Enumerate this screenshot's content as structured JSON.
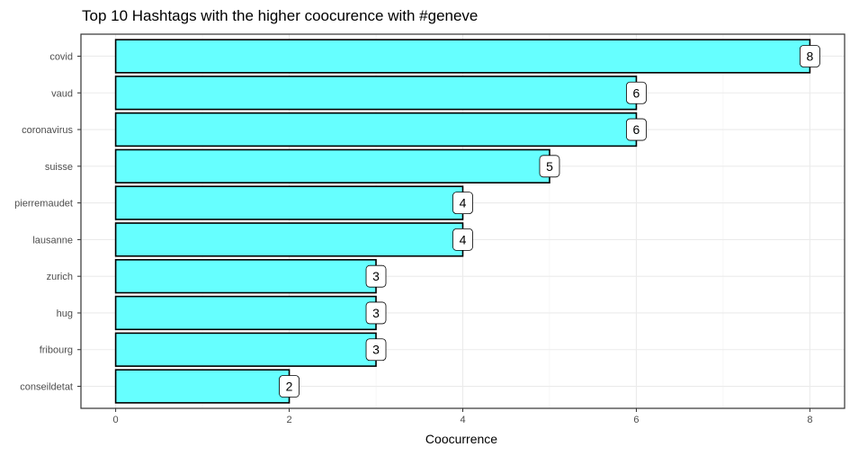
{
  "chart_data": {
    "type": "bar",
    "orientation": "horizontal",
    "title": "Top 10 Hashtags with the higher coocurence with #geneve",
    "xlabel": "Coocurrence",
    "ylabel": "",
    "categories": [
      "covid",
      "vaud",
      "coronavirus",
      "suisse",
      "pierremaudet",
      "lausanne",
      "zurich",
      "hug",
      "fribourg",
      "conseildetat"
    ],
    "values": [
      8,
      6,
      6,
      5,
      4,
      4,
      3,
      3,
      3,
      2
    ],
    "xticks": [
      "0",
      "2",
      "4",
      "6",
      "8"
    ],
    "xlim": [
      -0.4,
      8.4
    ],
    "grid": true,
    "bar_fill": "#66FFFF",
    "bar_stroke": "#000000",
    "data_labels": true
  }
}
